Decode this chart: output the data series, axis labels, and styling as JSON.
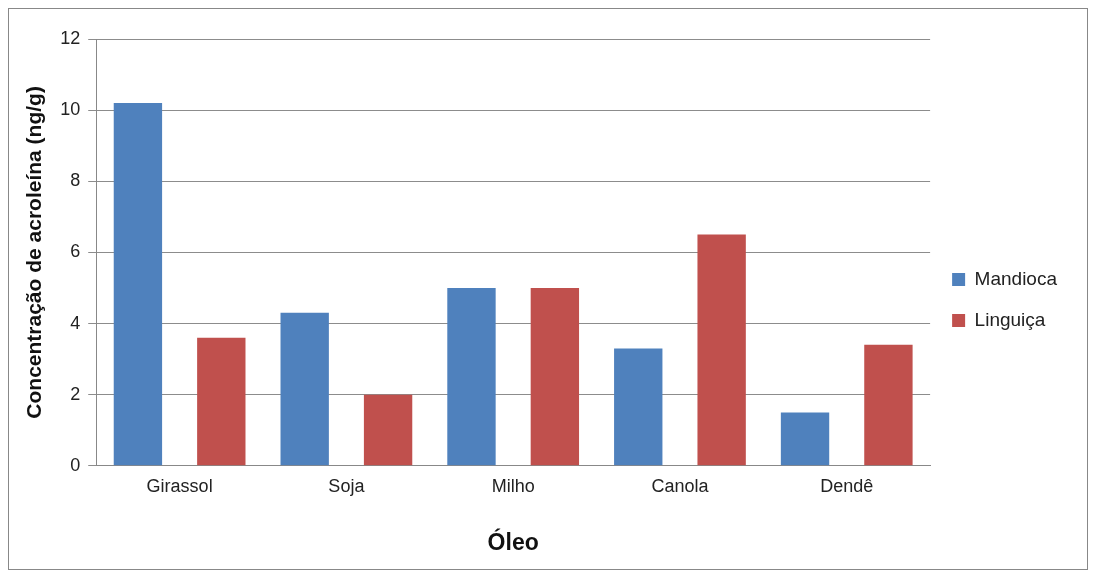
{
  "chart_data": {
    "type": "bar",
    "xlabel": "Óleo",
    "ylabel": "Concentração de acroleína (ng/g)",
    "categories": [
      "Girassol",
      "Soja",
      "Milho",
      "Canola",
      "Dendê"
    ],
    "series": [
      {
        "name": "Mandioca",
        "color": "#4f81bd",
        "values": [
          10.2,
          4.3,
          5.0,
          3.3,
          1.5
        ]
      },
      {
        "name": "Linguiça",
        "color": "#c0504d",
        "values": [
          3.6,
          2.0,
          5.0,
          6.5,
          3.4
        ]
      }
    ],
    "ylim": [
      0,
      12
    ],
    "yticks": [
      0,
      2,
      4,
      6,
      8,
      10,
      12
    ],
    "grid": "y",
    "legend": "right"
  }
}
